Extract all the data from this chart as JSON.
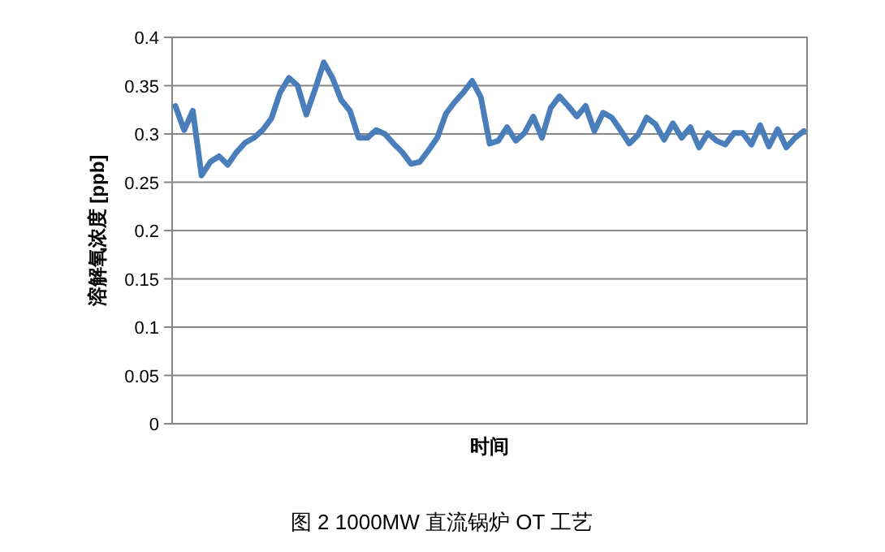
{
  "chart_data": {
    "type": "line",
    "title": "图 2 1000MW 直流锅炉 OT 工艺",
    "xlabel": "时间",
    "ylabel": "溶解氧浓度 [ppb]",
    "categories": [
      null,
      null,
      null,
      null,
      null,
      null,
      null,
      null,
      null,
      null,
      null,
      null,
      null,
      null,
      null,
      null,
      null,
      null,
      null,
      null,
      null,
      null,
      null,
      null,
      null,
      null,
      null,
      null,
      null,
      null,
      null,
      null,
      null,
      null,
      null,
      null,
      null,
      null,
      null,
      null,
      null,
      null,
      null,
      null,
      null,
      null,
      null,
      null,
      null,
      null,
      null,
      null,
      null,
      null,
      null,
      null,
      null,
      null,
      null,
      null,
      null,
      null,
      null,
      null,
      null,
      null,
      null,
      null,
      null,
      null,
      null,
      null,
      null
    ],
    "series": [
      {
        "color": "#4a7ebb",
        "values": [
          0.329,
          0.304,
          0.324,
          0.257,
          0.271,
          0.277,
          0.268,
          0.281,
          0.291,
          0.296,
          0.304,
          0.316,
          0.343,
          0.358,
          0.35,
          0.32,
          0.346,
          0.374,
          0.358,
          0.335,
          0.324,
          0.296,
          0.296,
          0.304,
          0.3,
          0.29,
          0.281,
          0.269,
          0.271,
          0.283,
          0.296,
          0.321,
          0.333,
          0.343,
          0.355,
          0.338,
          0.29,
          0.293,
          0.307,
          0.293,
          0.301,
          0.318,
          0.296,
          0.327,
          0.339,
          0.329,
          0.318,
          0.329,
          0.303,
          0.322,
          0.317,
          0.304,
          0.29,
          0.299,
          0.317,
          0.31,
          0.294,
          0.311,
          0.296,
          0.307,
          0.286,
          0.301,
          0.293,
          0.289,
          0.301,
          0.301,
          0.289,
          0.309,
          0.287,
          0.305,
          0.286,
          0.296,
          0.303
        ]
      }
    ],
    "ylim": [
      0,
      0.4
    ],
    "yticks": [
      0,
      0.05,
      0.1,
      0.15,
      0.2,
      0.25,
      0.3,
      0.35,
      0.4
    ],
    "grid": "y",
    "tick_labels": "y",
    "marker": "none",
    "line_style": "solid"
  }
}
